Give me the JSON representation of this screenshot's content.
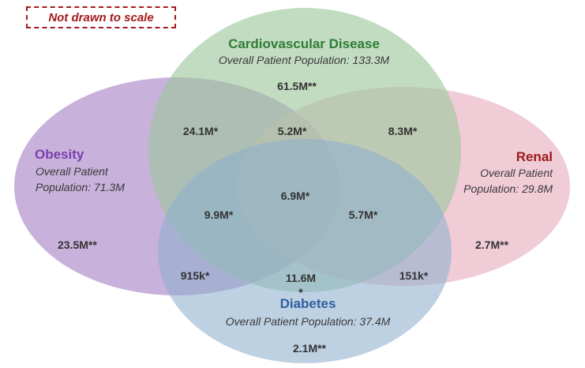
{
  "note": "Not drawn to scale",
  "sets": {
    "cardiovascular": {
      "title": "Cardiovascular Disease",
      "population": "Overall Patient Population: 133.3M",
      "color": "#2e7d32",
      "fill": "#9cc79c"
    },
    "obesity": {
      "title": "Obesity",
      "population_line1": "Overall Patient",
      "population_line2": "Population: 71.3M",
      "color": "#7b3fb0",
      "fill": "#b89bcf"
    },
    "renal": {
      "title": "Renal",
      "population_line1": "Overall Patient",
      "population_line2": "Population: 29.8M",
      "color": "#9c1a1a",
      "fill": "#eab6c6"
    },
    "diabetes": {
      "title": "Diabetes",
      "population": "Overall Patient Population: 37.4M",
      "color": "#2f5f9e",
      "fill": "#8fb0cf"
    }
  },
  "regions": {
    "cv_only": "61.5M**",
    "cv_obesity": "24.1M*",
    "cv_renal_obesity": "5.2M*",
    "cv_renal": "8.3M*",
    "obesity_only": "23.5M**",
    "renal_only": "2.7M**",
    "all_four": "6.9M*",
    "cv_obesity_diabetes": "9.9M*",
    "cv_renal_diabetes": "5.7M*",
    "obesity_diabetes": "915k*",
    "cv_diabetes": "11.6M",
    "cv_diabetes_star": "*",
    "renal_diabetes": "151k*",
    "diabetes_only": "2.1M**"
  }
}
